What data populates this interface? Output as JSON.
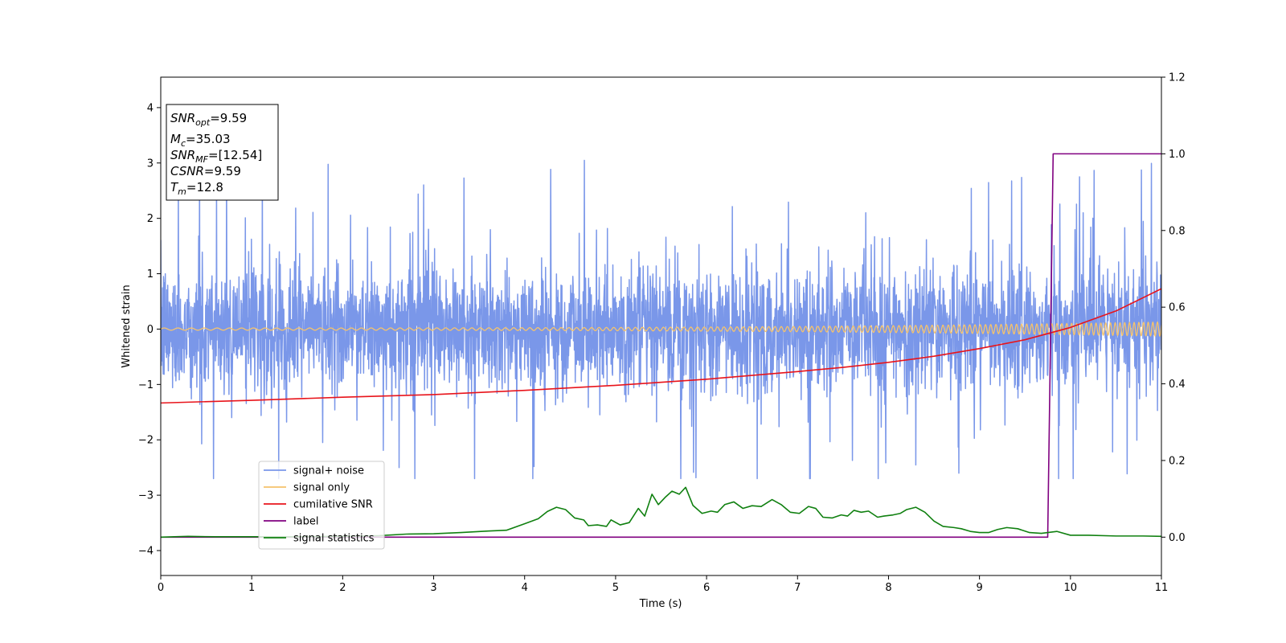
{
  "chart_data": {
    "type": "line",
    "title": "",
    "xlabel": "Time (s)",
    "ylabel": "Whitened strain",
    "y2label": "",
    "xlim": [
      0,
      11
    ],
    "ylim": [
      -4.45,
      4.55
    ],
    "y2lim": [
      -0.1,
      1.2
    ],
    "xticks": [
      "0",
      "1",
      "2",
      "3",
      "4",
      "5",
      "6",
      "7",
      "8",
      "9",
      "10",
      "11"
    ],
    "yticks": [
      "−4",
      "−3",
      "−2",
      "−1",
      "0",
      "1",
      "2",
      "3",
      "4"
    ],
    "y2ticks": [
      "0.0",
      "0.2",
      "0.4",
      "0.6",
      "0.8",
      "1.0",
      "1.2"
    ],
    "grid": false,
    "legend_position": "lower-left",
    "info_box": {
      "position": "top-left",
      "lines": [
        {
          "base": "SNR",
          "sub": "opt",
          "value": "=9.59"
        },
        {
          "base": "M",
          "sub": "c",
          "value": "=35.03"
        },
        {
          "base": "SNR",
          "sub": "MF",
          "value": "=[12.54]"
        },
        {
          "base": "CSNR",
          "sub": "",
          "value": "=9.59"
        },
        {
          "base": "T",
          "sub": "m",
          "value": "=12.8"
        }
      ]
    },
    "series": [
      {
        "name": "signal+ noise",
        "axis": "left",
        "color": "#7a97e9",
        "style": "noise",
        "sigma": 0.58,
        "spike_max": 3.25,
        "spike_min": -2.7,
        "x_range": [
          0,
          11
        ]
      },
      {
        "name": "signal only",
        "axis": "left",
        "color": "#f5c36c",
        "style": "chirp",
        "amp_start": 0.02,
        "amp_end": 0.13,
        "x_range": [
          0,
          11
        ]
      },
      {
        "name": "cumilative SNR",
        "axis": "right",
        "color": "#e8141b",
        "x": [
          0,
          1,
          2,
          3,
          4,
          5,
          6,
          7,
          7.5,
          8,
          8.5,
          9,
          9.5,
          10,
          10.5,
          11
        ],
        "y": [
          0.35,
          0.357,
          0.365,
          0.372,
          0.383,
          0.396,
          0.412,
          0.432,
          0.443,
          0.456,
          0.472,
          0.492,
          0.515,
          0.547,
          0.59,
          0.648
        ]
      },
      {
        "name": "label",
        "axis": "right",
        "color": "#800080",
        "x": [
          0,
          9.75,
          9.81,
          11
        ],
        "y": [
          0,
          0,
          1,
          1
        ]
      },
      {
        "name": "signal statistics",
        "axis": "right",
        "color": "#108010",
        "x": [
          0,
          0.3,
          0.6,
          1.0,
          1.5,
          2.0,
          2.4,
          2.7,
          3.0,
          3.3,
          3.6,
          3.8,
          4.0,
          4.15,
          4.25,
          4.35,
          4.45,
          4.55,
          4.65,
          4.7,
          4.8,
          4.9,
          4.95,
          5.05,
          5.15,
          5.25,
          5.32,
          5.4,
          5.47,
          5.55,
          5.62,
          5.7,
          5.77,
          5.85,
          5.95,
          6.05,
          6.12,
          6.2,
          6.3,
          6.4,
          6.5,
          6.6,
          6.72,
          6.82,
          6.92,
          7.02,
          7.12,
          7.2,
          7.28,
          7.38,
          7.48,
          7.55,
          7.62,
          7.7,
          7.78,
          7.88,
          7.95,
          8.05,
          8.13,
          8.2,
          8.3,
          8.4,
          8.5,
          8.6,
          8.72,
          8.8,
          8.9,
          9.0,
          9.1,
          9.2,
          9.3,
          9.42,
          9.55,
          9.68,
          9.85,
          10.0,
          10.2,
          10.5,
          10.8,
          11.0
        ],
        "y": [
          0.0,
          0.002,
          0.001,
          0.001,
          0.001,
          0.002,
          0.004,
          0.008,
          0.009,
          0.012,
          0.016,
          0.018,
          0.035,
          0.048,
          0.067,
          0.078,
          0.072,
          0.05,
          0.045,
          0.03,
          0.032,
          0.028,
          0.045,
          0.032,
          0.038,
          0.075,
          0.055,
          0.112,
          0.085,
          0.105,
          0.12,
          0.112,
          0.13,
          0.083,
          0.062,
          0.068,
          0.065,
          0.085,
          0.092,
          0.075,
          0.082,
          0.08,
          0.098,
          0.085,
          0.065,
          0.062,
          0.08,
          0.075,
          0.052,
          0.05,
          0.058,
          0.055,
          0.07,
          0.065,
          0.068,
          0.052,
          0.055,
          0.058,
          0.062,
          0.072,
          0.078,
          0.065,
          0.042,
          0.028,
          0.025,
          0.022,
          0.015,
          0.012,
          0.012,
          0.02,
          0.025,
          0.022,
          0.012,
          0.01,
          0.015,
          0.005,
          0.005,
          0.003,
          0.003,
          0.002
        ]
      }
    ]
  }
}
